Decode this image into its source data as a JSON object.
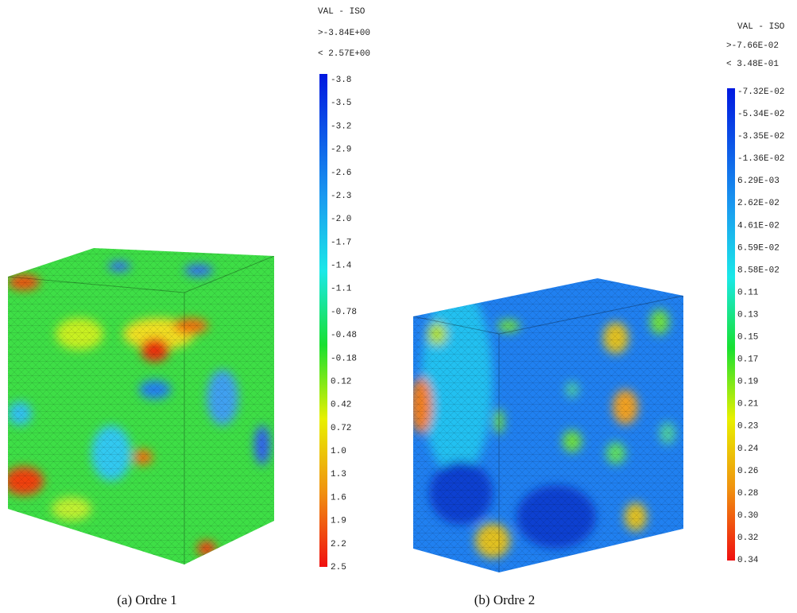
{
  "panels": [
    {
      "legend": {
        "title": "VAL - ISO",
        "range_max": ">-3.84E+00",
        "range_min": "< 2.57E+00",
        "ticks": [
          "-3.8",
          "-3.5",
          "-3.2",
          "-2.9",
          "-2.6",
          "-2.3",
          "-2.0",
          "-1.7",
          "-1.4",
          "-1.1",
          "-0.78",
          "-0.48",
          "-0.18",
          "0.12",
          "0.42",
          "0.72",
          "1.0",
          "1.3",
          "1.6",
          "1.9",
          "2.2",
          "2.5"
        ]
      },
      "caption": "(a)  Ordre 1"
    },
    {
      "legend": {
        "title": "VAL - ISO",
        "range_max": ">-7.66E-02",
        "range_min": "< 3.48E-01",
        "ticks": [
          "-7.32E-02",
          "-5.34E-02",
          "-3.35E-02",
          "-1.36E-02",
          "6.29E-03",
          "2.62E-02",
          "4.61E-02",
          "6.59E-02",
          "8.58E-02",
          "0.11",
          "0.13",
          "0.15",
          "0.17",
          "0.19",
          "0.21",
          "0.23",
          "0.24",
          "0.26",
          "0.28",
          "0.30",
          "0.32",
          "0.34"
        ]
      },
      "caption": "(b)  Ordre 2"
    }
  ]
}
